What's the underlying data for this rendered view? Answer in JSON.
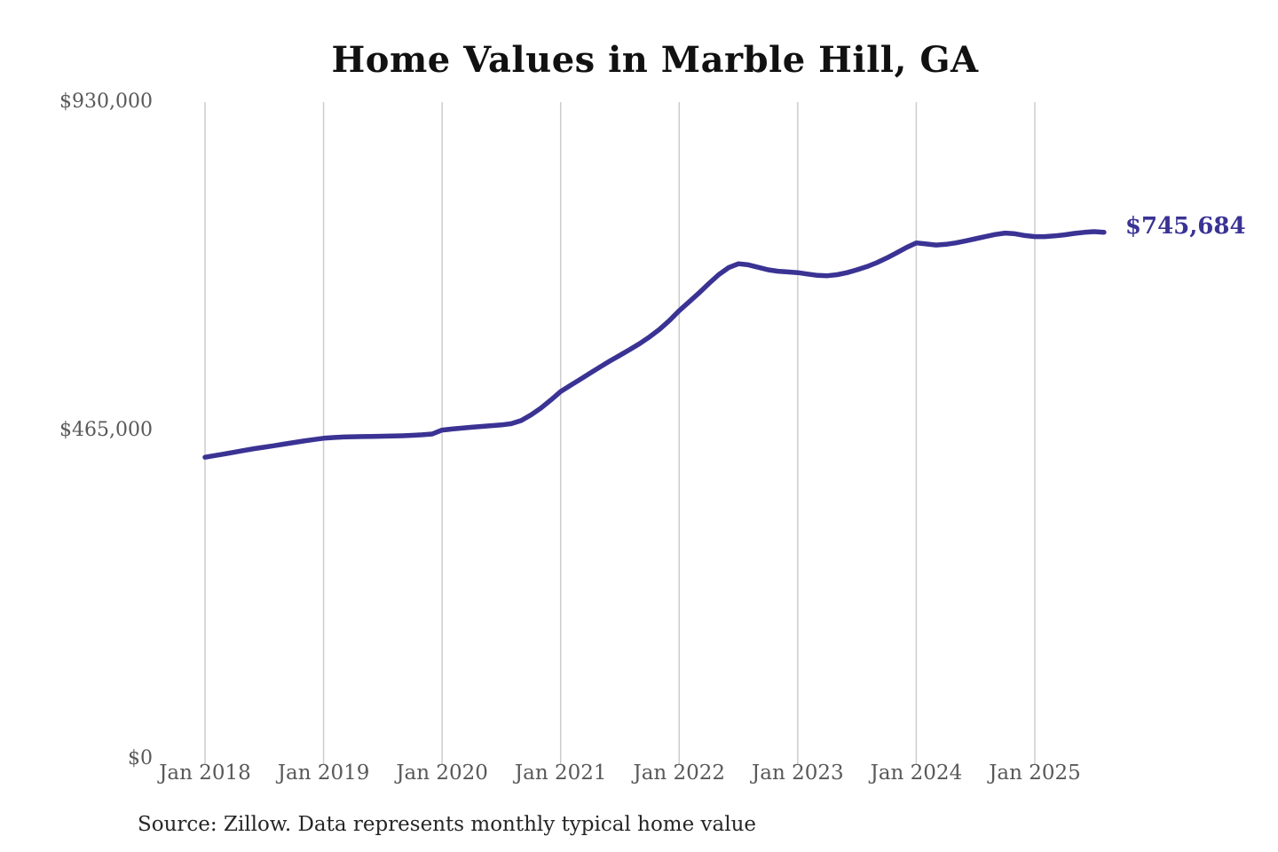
{
  "title": "Home Values in Marble Hill, GA",
  "source_note": "Source: Zillow. Data represents monthly typical home value",
  "colors": {
    "line": "#3a3394",
    "latest_value_text": "#3a3394",
    "title_text": "#111111",
    "axis_text": "#595959",
    "gridline": "#cccccc",
    "source_text": "#262626",
    "background": "#ffffff"
  },
  "chart_data": {
    "type": "line",
    "title": "Home Values in Marble Hill, GA",
    "xlabel": "",
    "ylabel": "",
    "ylim": [
      0,
      930000
    ],
    "y_ticks": [
      0,
      465000,
      930000
    ],
    "y_tick_labels": [
      "$0",
      "$465,000",
      "$930,000"
    ],
    "x_tick_labels": [
      "Jan 2018",
      "Jan 2019",
      "Jan 2020",
      "Jan 2021",
      "Jan 2022",
      "Jan 2023",
      "Jan 2024",
      "Jan 2025"
    ],
    "grid": "vertical-only",
    "legend": "none",
    "last_value": 745684,
    "last_value_label": "$745,684",
    "series": [
      {
        "name": "Monthly typical home value",
        "months": [
          "2018-01",
          "2018-02",
          "2018-03",
          "2018-04",
          "2018-05",
          "2018-06",
          "2018-07",
          "2018-08",
          "2018-09",
          "2018-10",
          "2018-11",
          "2018-12",
          "2019-01",
          "2019-02",
          "2019-03",
          "2019-04",
          "2019-05",
          "2019-06",
          "2019-07",
          "2019-08",
          "2019-09",
          "2019-10",
          "2019-11",
          "2019-12",
          "2020-01",
          "2020-02",
          "2020-03",
          "2020-04",
          "2020-05",
          "2020-06",
          "2020-07",
          "2020-08",
          "2020-09",
          "2020-10",
          "2020-11",
          "2020-12",
          "2021-01",
          "2021-02",
          "2021-03",
          "2021-04",
          "2021-05",
          "2021-06",
          "2021-07",
          "2021-08",
          "2021-09",
          "2021-10",
          "2021-11",
          "2021-12",
          "2022-01",
          "2022-02",
          "2022-03",
          "2022-04",
          "2022-05",
          "2022-06",
          "2022-07",
          "2022-08",
          "2022-09",
          "2022-10",
          "2022-11",
          "2022-12",
          "2023-01",
          "2023-02",
          "2023-03",
          "2023-04",
          "2023-05",
          "2023-06",
          "2023-07",
          "2023-08",
          "2023-09",
          "2023-10",
          "2023-11",
          "2023-12",
          "2024-01",
          "2024-02",
          "2024-03",
          "2024-04",
          "2024-05",
          "2024-06",
          "2024-07",
          "2024-08",
          "2024-09",
          "2024-10",
          "2024-11",
          "2024-12",
          "2025-01",
          "2025-02",
          "2025-03",
          "2025-04",
          "2025-05",
          "2025-06",
          "2025-07",
          "2025-08"
        ],
        "values": [
          427000,
          429400,
          431800,
          434300,
          436800,
          439200,
          441300,
          443400,
          445600,
          447900,
          450100,
          452100,
          453900,
          455000,
          455700,
          456100,
          456300,
          456500,
          456800,
          457100,
          457500,
          458100,
          458900,
          460000,
          465500,
          467000,
          468300,
          469500,
          470700,
          471800,
          472800,
          474500,
          479000,
          487000,
          496500,
          508000,
          520000,
          528800,
          537500,
          546300,
          555000,
          563500,
          571500,
          579500,
          588000,
          597500,
          608000,
          620500,
          634500,
          647000,
          659500,
          673000,
          685500,
          695500,
          701000,
          699500,
          696000,
          692500,
          690500,
          689500,
          688500,
          686500,
          684500,
          684000,
          685500,
          688500,
          692500,
          697000,
          702500,
          709000,
          716500,
          724000,
          730500,
          729000,
          727500,
          728500,
          730500,
          733500,
          736500,
          739500,
          742500,
          744500,
          743500,
          741000,
          739500,
          739500,
          740500,
          742000,
          744000,
          745500,
          746500,
          745684
        ]
      }
    ]
  }
}
